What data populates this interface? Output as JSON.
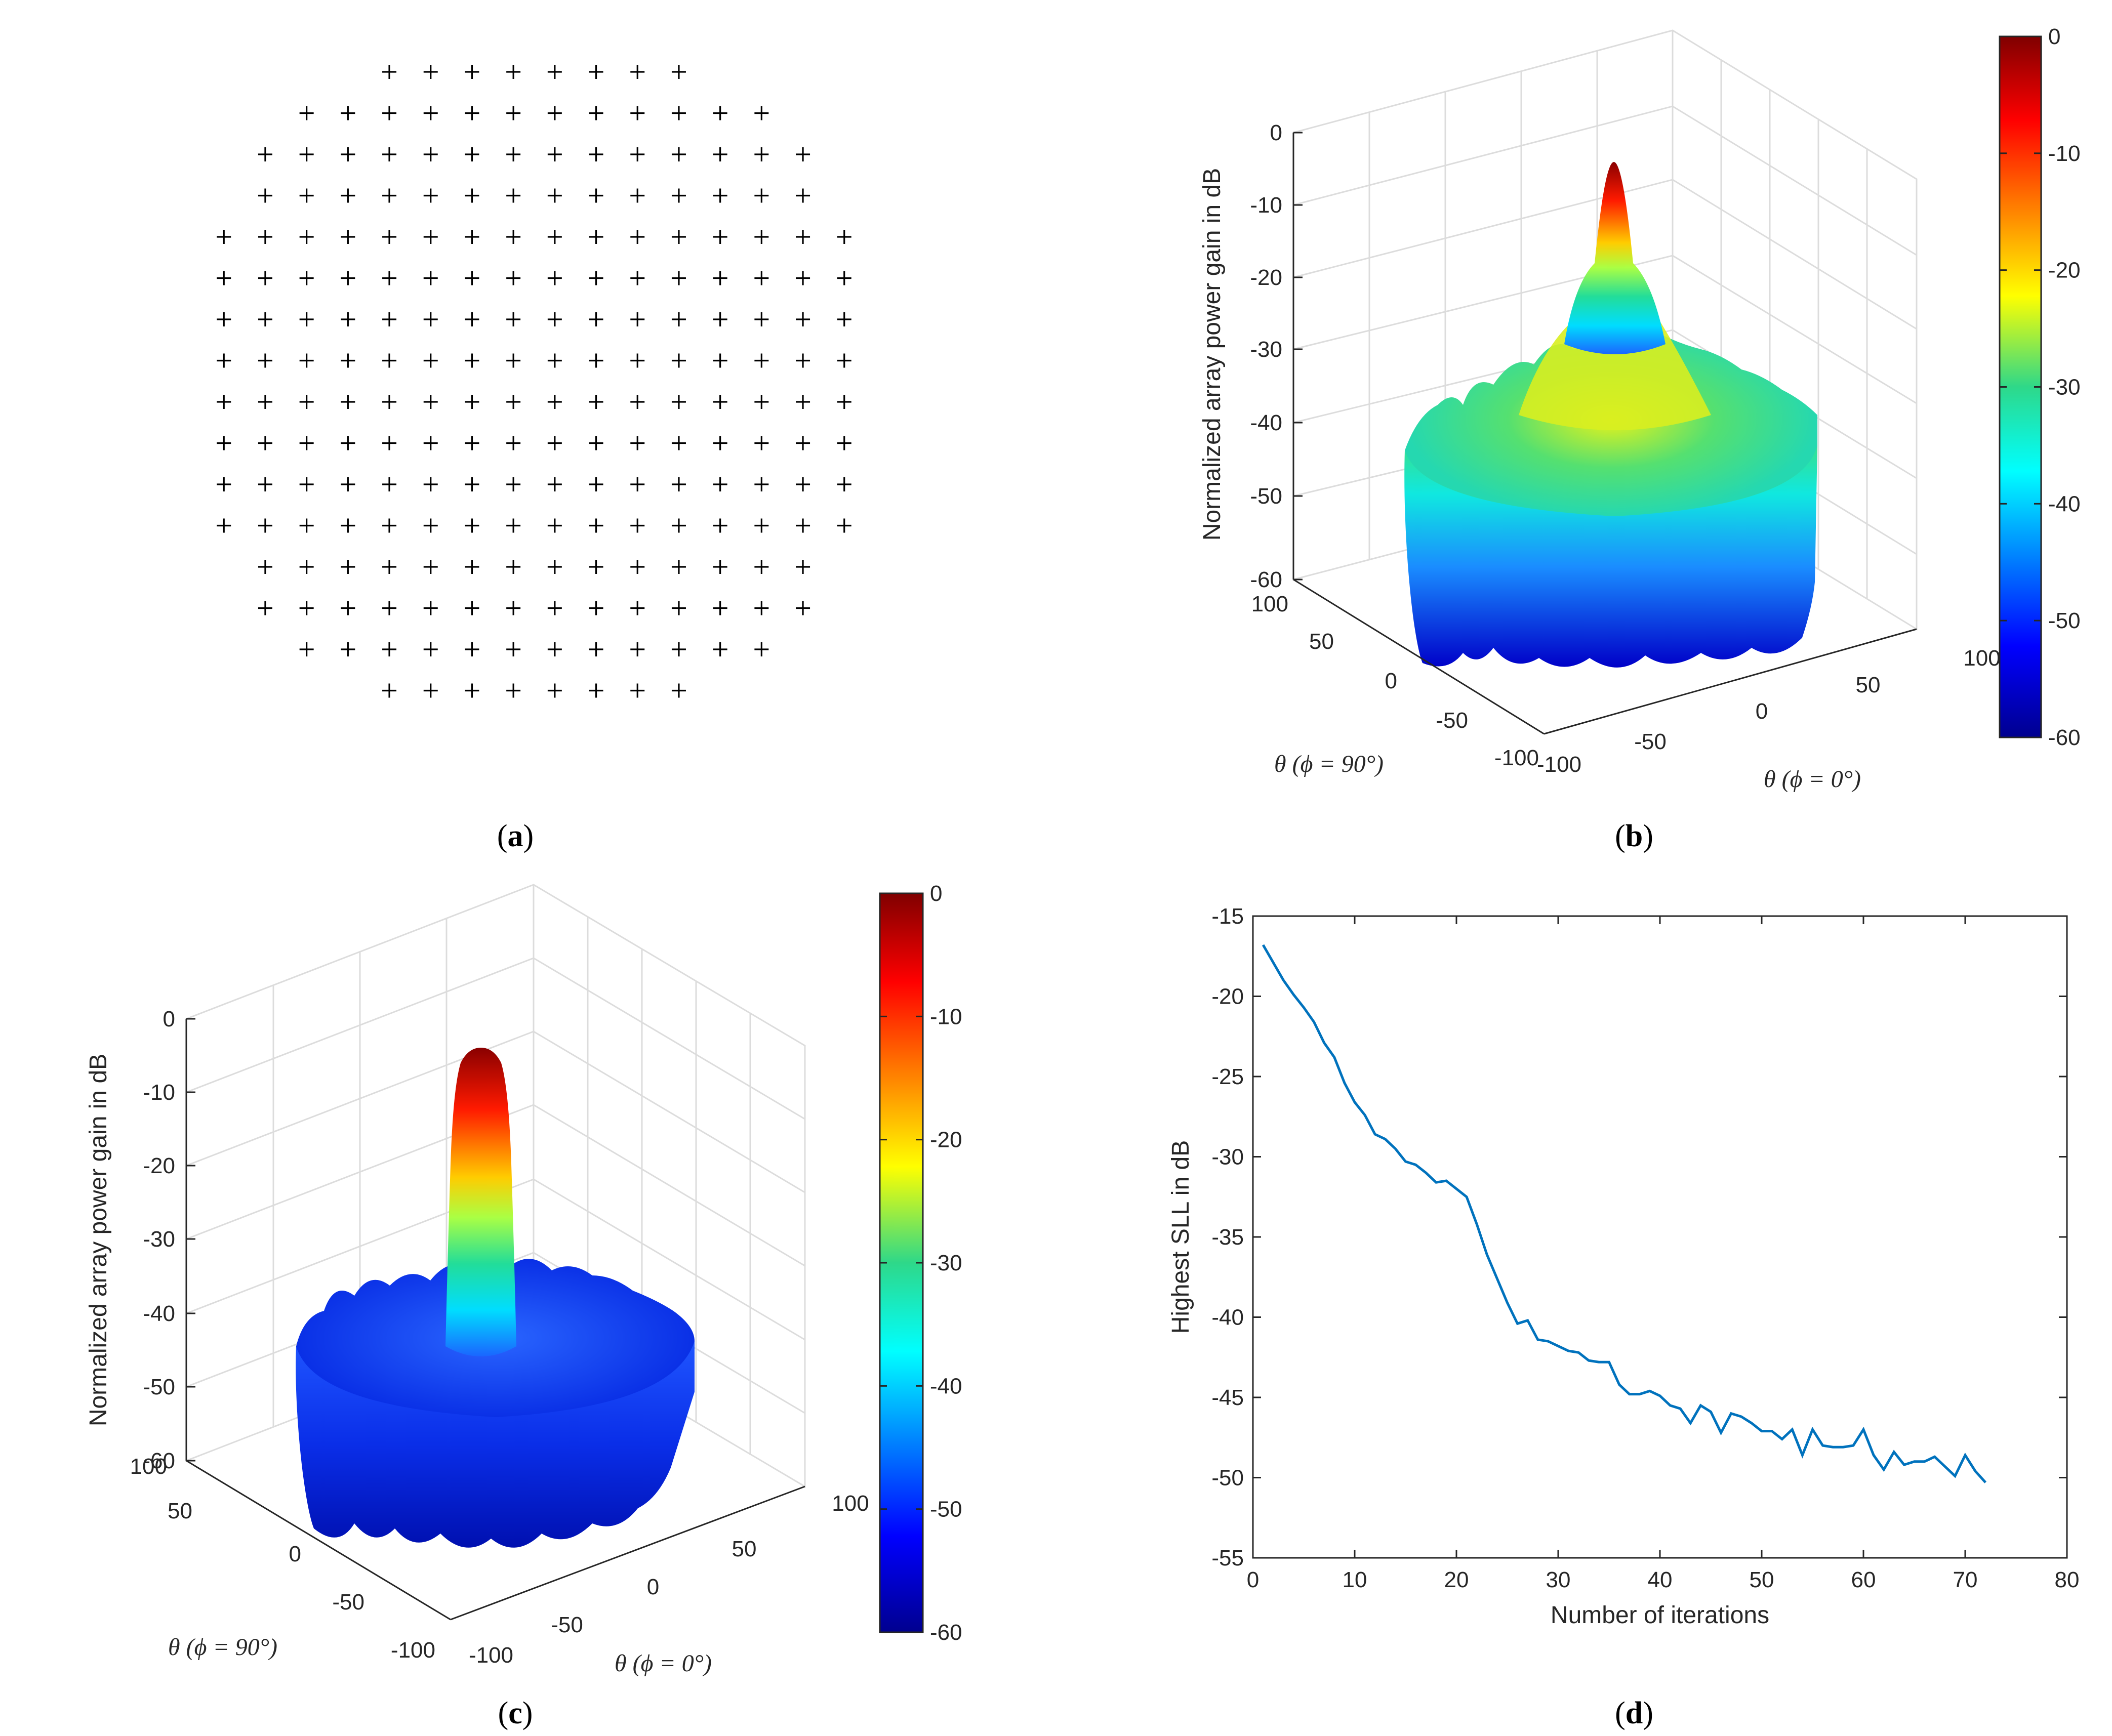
{
  "panel_labels": {
    "a": "a",
    "b": "b",
    "c": "c",
    "d": "d"
  },
  "panel_a": {
    "rows": [
      8,
      12,
      14,
      14,
      16,
      16,
      16,
      16,
      16,
      16,
      16,
      16,
      14,
      14,
      12,
      8
    ],
    "marker": "+"
  },
  "panel_b": {
    "zlabel": "Normalized array power gain in dB",
    "zticks": [
      "0",
      "-10",
      "-20",
      "-30",
      "-40",
      "-50",
      "-60"
    ],
    "yticks": [
      "100",
      "50",
      "0",
      "-50",
      "-100"
    ],
    "xticks": [
      "100",
      "50",
      "0",
      "-50",
      "-100"
    ],
    "ylabel": "θ (ϕ = 90°)",
    "xlabel": "θ (ϕ = 0°)",
    "colorbar_ticks": [
      "0",
      "-10",
      "-20",
      "-30",
      "-40",
      "-50",
      "-60"
    ]
  },
  "panel_c": {
    "zlabel": "Normalized array power gain in dB",
    "zticks": [
      "0",
      "-10",
      "-20",
      "-30",
      "-40",
      "-50",
      "-60"
    ],
    "yticks": [
      "100",
      "50",
      "0",
      "-50",
      "-100"
    ],
    "xticks": [
      "100",
      "50",
      "0",
      "-50",
      "-100"
    ],
    "ylabel": "θ (ϕ = 90°)",
    "xlabel": "θ (ϕ = 0°)",
    "colorbar_ticks": [
      "0",
      "-10",
      "-20",
      "-30",
      "-40",
      "-50",
      "-60"
    ]
  },
  "chart_data": {
    "type": "line",
    "title": "",
    "xlabel": "Number of iterations",
    "ylabel": "Highest SLL in dB",
    "xlim": [
      0,
      80
    ],
    "ylim": [
      -55,
      -15
    ],
    "xticks": [
      "0",
      "10",
      "20",
      "30",
      "40",
      "50",
      "60",
      "70",
      "80"
    ],
    "yticks": [
      "-15",
      "-20",
      "-25",
      "-30",
      "-35",
      "-40",
      "-45",
      "-50",
      "-55"
    ],
    "series_color": "#0072BD",
    "x": [
      1,
      2,
      3,
      4,
      5,
      6,
      7,
      8,
      9,
      10,
      11,
      12,
      13,
      14,
      15,
      16,
      17,
      18,
      19,
      20,
      21,
      22,
      23,
      24,
      25,
      26,
      27,
      28,
      29,
      30,
      31,
      32,
      33,
      34,
      35,
      36,
      37,
      38,
      39,
      40,
      41,
      42,
      43,
      44,
      45,
      46,
      47,
      48,
      49,
      50,
      51,
      52,
      53,
      54,
      55,
      56,
      57,
      58,
      59,
      60,
      61,
      62,
      63,
      64,
      65,
      66,
      67,
      68,
      69,
      70,
      71,
      72
    ],
    "y": [
      -16.8,
      -17.9,
      -19.0,
      -19.9,
      -20.7,
      -21.6,
      -22.9,
      -23.8,
      -25.4,
      -26.6,
      -27.4,
      -28.6,
      -28.9,
      -29.5,
      -30.3,
      -30.5,
      -31.0,
      -31.6,
      -31.5,
      -32.0,
      -32.5,
      -34.2,
      -36.1,
      -37.6,
      -39.1,
      -40.4,
      -40.2,
      -41.4,
      -41.5,
      -41.8,
      -42.1,
      -42.2,
      -42.7,
      -42.8,
      -42.8,
      -44.2,
      -44.8,
      -44.8,
      -44.6,
      -44.9,
      -45.5,
      -45.7,
      -46.6,
      -45.5,
      -45.9,
      -47.2,
      -46.0,
      -46.2,
      -46.6,
      -47.1,
      -47.1,
      -47.6,
      -47.0,
      -48.6,
      -47.0,
      -48.0,
      -48.1,
      -48.1,
      -48.0,
      -47.0,
      -48.6,
      -49.5,
      -48.4,
      -49.2,
      -49.0,
      -49.0,
      -48.7,
      -49.3,
      -49.9,
      -48.6,
      -49.6,
      -50.3
    ]
  }
}
